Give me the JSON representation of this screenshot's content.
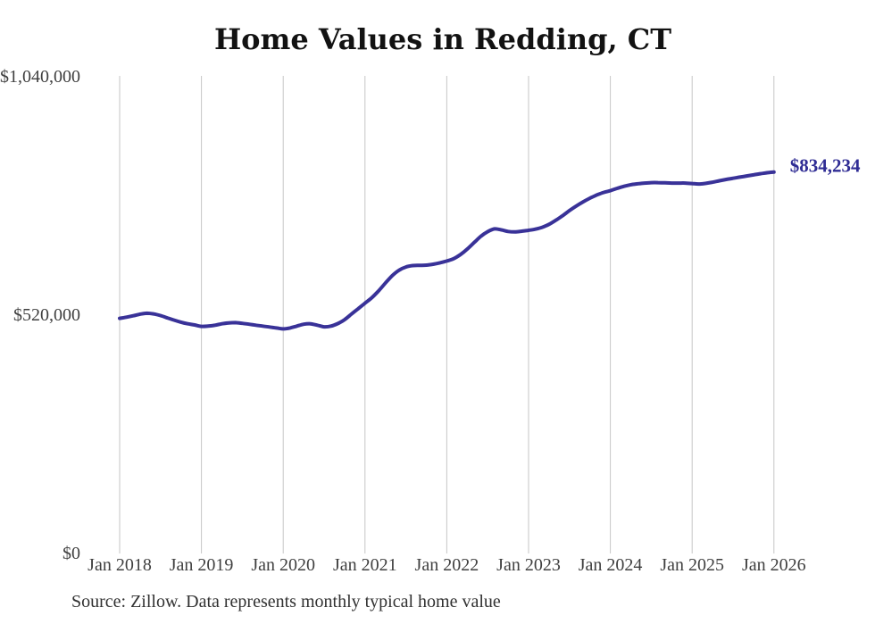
{
  "title": "Home Values in Redding, CT",
  "end_label": "$834,234",
  "source_note": "Source: Zillow. Data represents monthly typical home value",
  "colors": {
    "line": "#393298",
    "end_label_text": "#2f2c94",
    "grid": "#c6c6c6",
    "axis_text": "#3f3f3f",
    "title_text": "#121212",
    "source_text": "#313131",
    "background": "#ffffff"
  },
  "chart_data": {
    "type": "line",
    "title": "Home Values in Redding, CT",
    "xlabel": "",
    "ylabel": "",
    "ylim": [
      0,
      1040000
    ],
    "grid": "vertical-only",
    "legend": "none",
    "frequency": "monthly",
    "x_start": "2018-01",
    "x_end": "2026-01",
    "x_tick_labels": [
      "Jan 2018",
      "Jan 2019",
      "Jan 2020",
      "Jan 2021",
      "Jan 2022",
      "Jan 2023",
      "Jan 2024",
      "Jan 2025",
      "Jan 2026"
    ],
    "y_ticks": [
      {
        "value": 0,
        "label": "$0"
      },
      {
        "value": 520000,
        "label": "$520,000"
      },
      {
        "value": 1040000,
        "label": "$1,040,000"
      }
    ],
    "end_value": 834234,
    "series": [
      {
        "name": "Typical home value",
        "values": [
          515000,
          517500,
          520500,
          524000,
          526000,
          524500,
          521000,
          516000,
          511000,
          506500,
          503000,
          500500,
          497500,
          498000,
          500000,
          503000,
          505000,
          505500,
          504000,
          502000,
          500000,
          498000,
          496000,
          494000,
          492000,
          494000,
          498000,
          502000,
          503000,
          500000,
          496500,
          498000,
          503500,
          512000,
          524000,
          536000,
          548000,
          560000,
          575000,
          592000,
          608000,
          620000,
          627000,
          630000,
          630500,
          631000,
          633000,
          636000,
          640000,
          645000,
          654000,
          666000,
          680000,
          694000,
          704000,
          710000,
          708000,
          704500,
          703500,
          705000,
          707000,
          709500,
          713500,
          720000,
          729000,
          739000,
          750000,
          760000,
          769000,
          777000,
          784000,
          789500,
          793500,
          798500,
          803000,
          806500,
          808500,
          810000,
          811000,
          811000,
          810500,
          810000,
          810000,
          810000,
          809000,
          808000,
          809500,
          812000,
          815000,
          818000,
          820500,
          823000,
          825500,
          828000,
          830500,
          832500,
          834234
        ]
      }
    ]
  }
}
